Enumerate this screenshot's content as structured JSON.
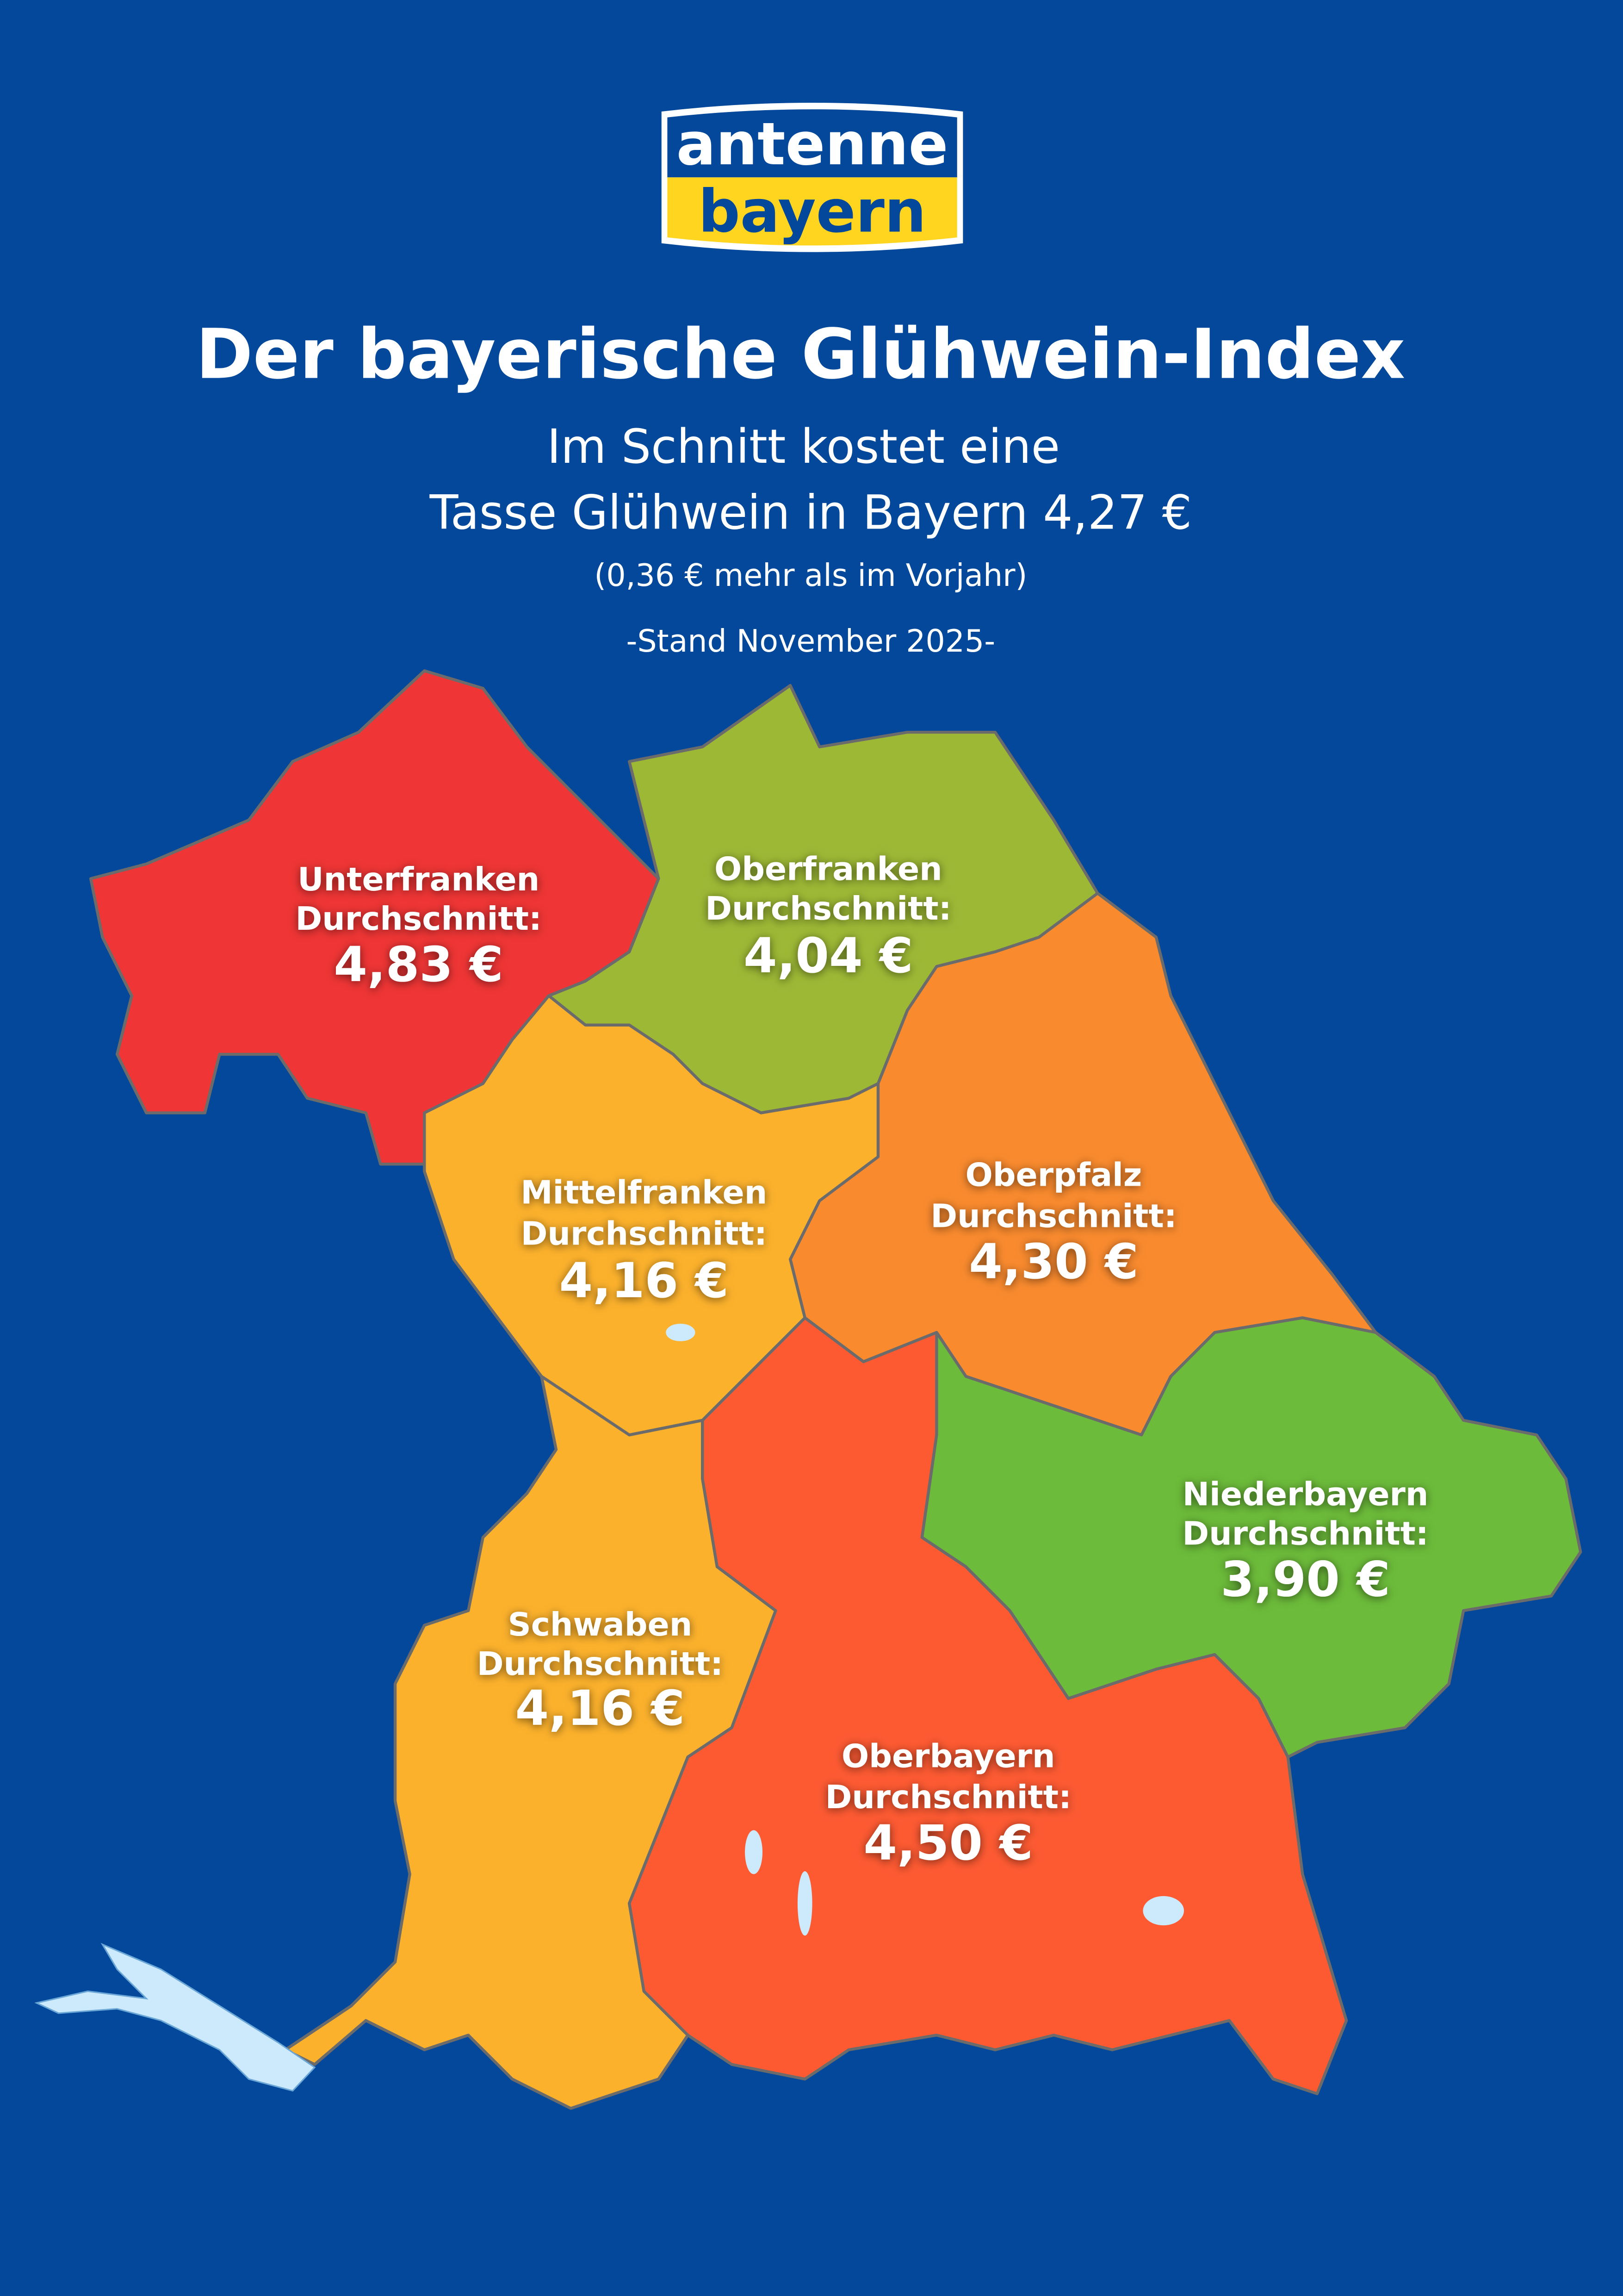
{
  "logo": {
    "line1": "antenne",
    "line2": "bayern"
  },
  "header": {
    "title": "Der bayerische Glühwein-Index",
    "subtitle_line1": "Im Schnitt kostet eine",
    "subtitle_line2": "Tasse Glühwein in Bayern 4,27 €",
    "note": "(0,36 € mehr als im Vorjahr)",
    "date": "-Stand November 2025-"
  },
  "colors": {
    "background": "#03489a",
    "logo_yellow": "#ffd520",
    "lake": "#cdeafd"
  },
  "regions": [
    {
      "name": "Unterfranken",
      "label": "Durchschnitt:",
      "price": "4,83 €",
      "color": "#ef3535"
    },
    {
      "name": "Oberfranken",
      "label": "Durchschnitt:",
      "price": "4,04 €",
      "color": "#9db835"
    },
    {
      "name": "Mittelfranken",
      "label": "Durchschnitt:",
      "price": "4,16 €",
      "color": "#fcb12c"
    },
    {
      "name": "Oberpfalz",
      "label": "Durchschnitt:",
      "price": "4,30 €",
      "color": "#f98a2e"
    },
    {
      "name": "Niederbayern",
      "label": "Durchschnitt:",
      "price": "3,90 €",
      "color": "#6cbb3a"
    },
    {
      "name": "Schwaben",
      "label": "Durchschnitt:",
      "price": "4,16 €",
      "color": "#fcb12c"
    },
    {
      "name": "Oberbayern",
      "label": "Durchschnitt:",
      "price": "4,50 €",
      "color": "#fd5a32"
    }
  ]
}
